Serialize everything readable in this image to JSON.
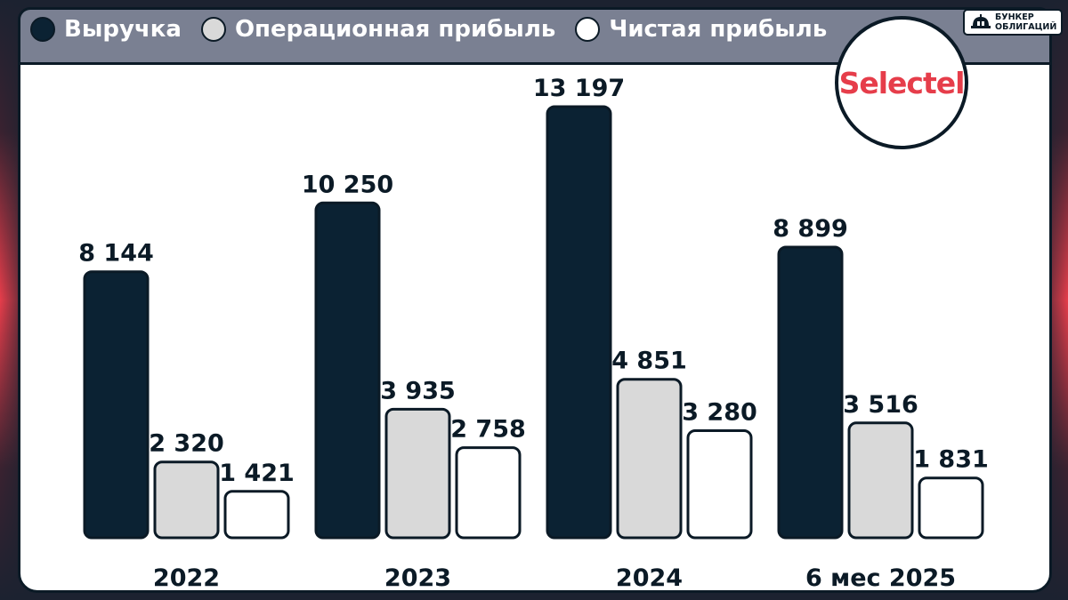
{
  "colors": {
    "revenue": "#0b2233",
    "operating_profit": "#d9d9d9",
    "net_profit": "#ffffff",
    "outline": "#0b1a26",
    "header_bg": "#7a8092",
    "logo_red": "#e63d4a"
  },
  "legend": [
    {
      "label": "Выручка",
      "color": "#0b2233"
    },
    {
      "label": "Операционная прибыль",
      "color": "#d9d9d9"
    },
    {
      "label": "Чистая прибыль",
      "color": "#ffffff"
    }
  ],
  "brand": {
    "line1": "БУНКЕР",
    "line2": "ОБЛИГАЦИЙ",
    "icon": "bunker-icon"
  },
  "logo": {
    "text": "Selectel"
  },
  "chart_data": {
    "type": "bar",
    "categories": [
      "2022",
      "2023",
      "2024",
      "6 мес 2025"
    ],
    "series": [
      {
        "name": "Выручка",
        "values": [
          8144,
          10250,
          13197,
          8899
        ],
        "labels": [
          "8 144",
          "10 250",
          "13 197",
          "8 899"
        ]
      },
      {
        "name": "Операционная прибыль",
        "values": [
          2320,
          3935,
          4851,
          3516
        ],
        "labels": [
          "2 320",
          "3 935",
          "4 851",
          "3 516"
        ]
      },
      {
        "name": "Чистая прибыль",
        "values": [
          1421,
          2758,
          3280,
          1831
        ],
        "labels": [
          "1 421",
          "2 758",
          "3 280",
          "1 831"
        ]
      }
    ],
    "title": "",
    "xlabel": "",
    "ylabel": "",
    "ylim": [
      0,
      13197
    ],
    "grid": false,
    "legend_position": "top-left"
  }
}
